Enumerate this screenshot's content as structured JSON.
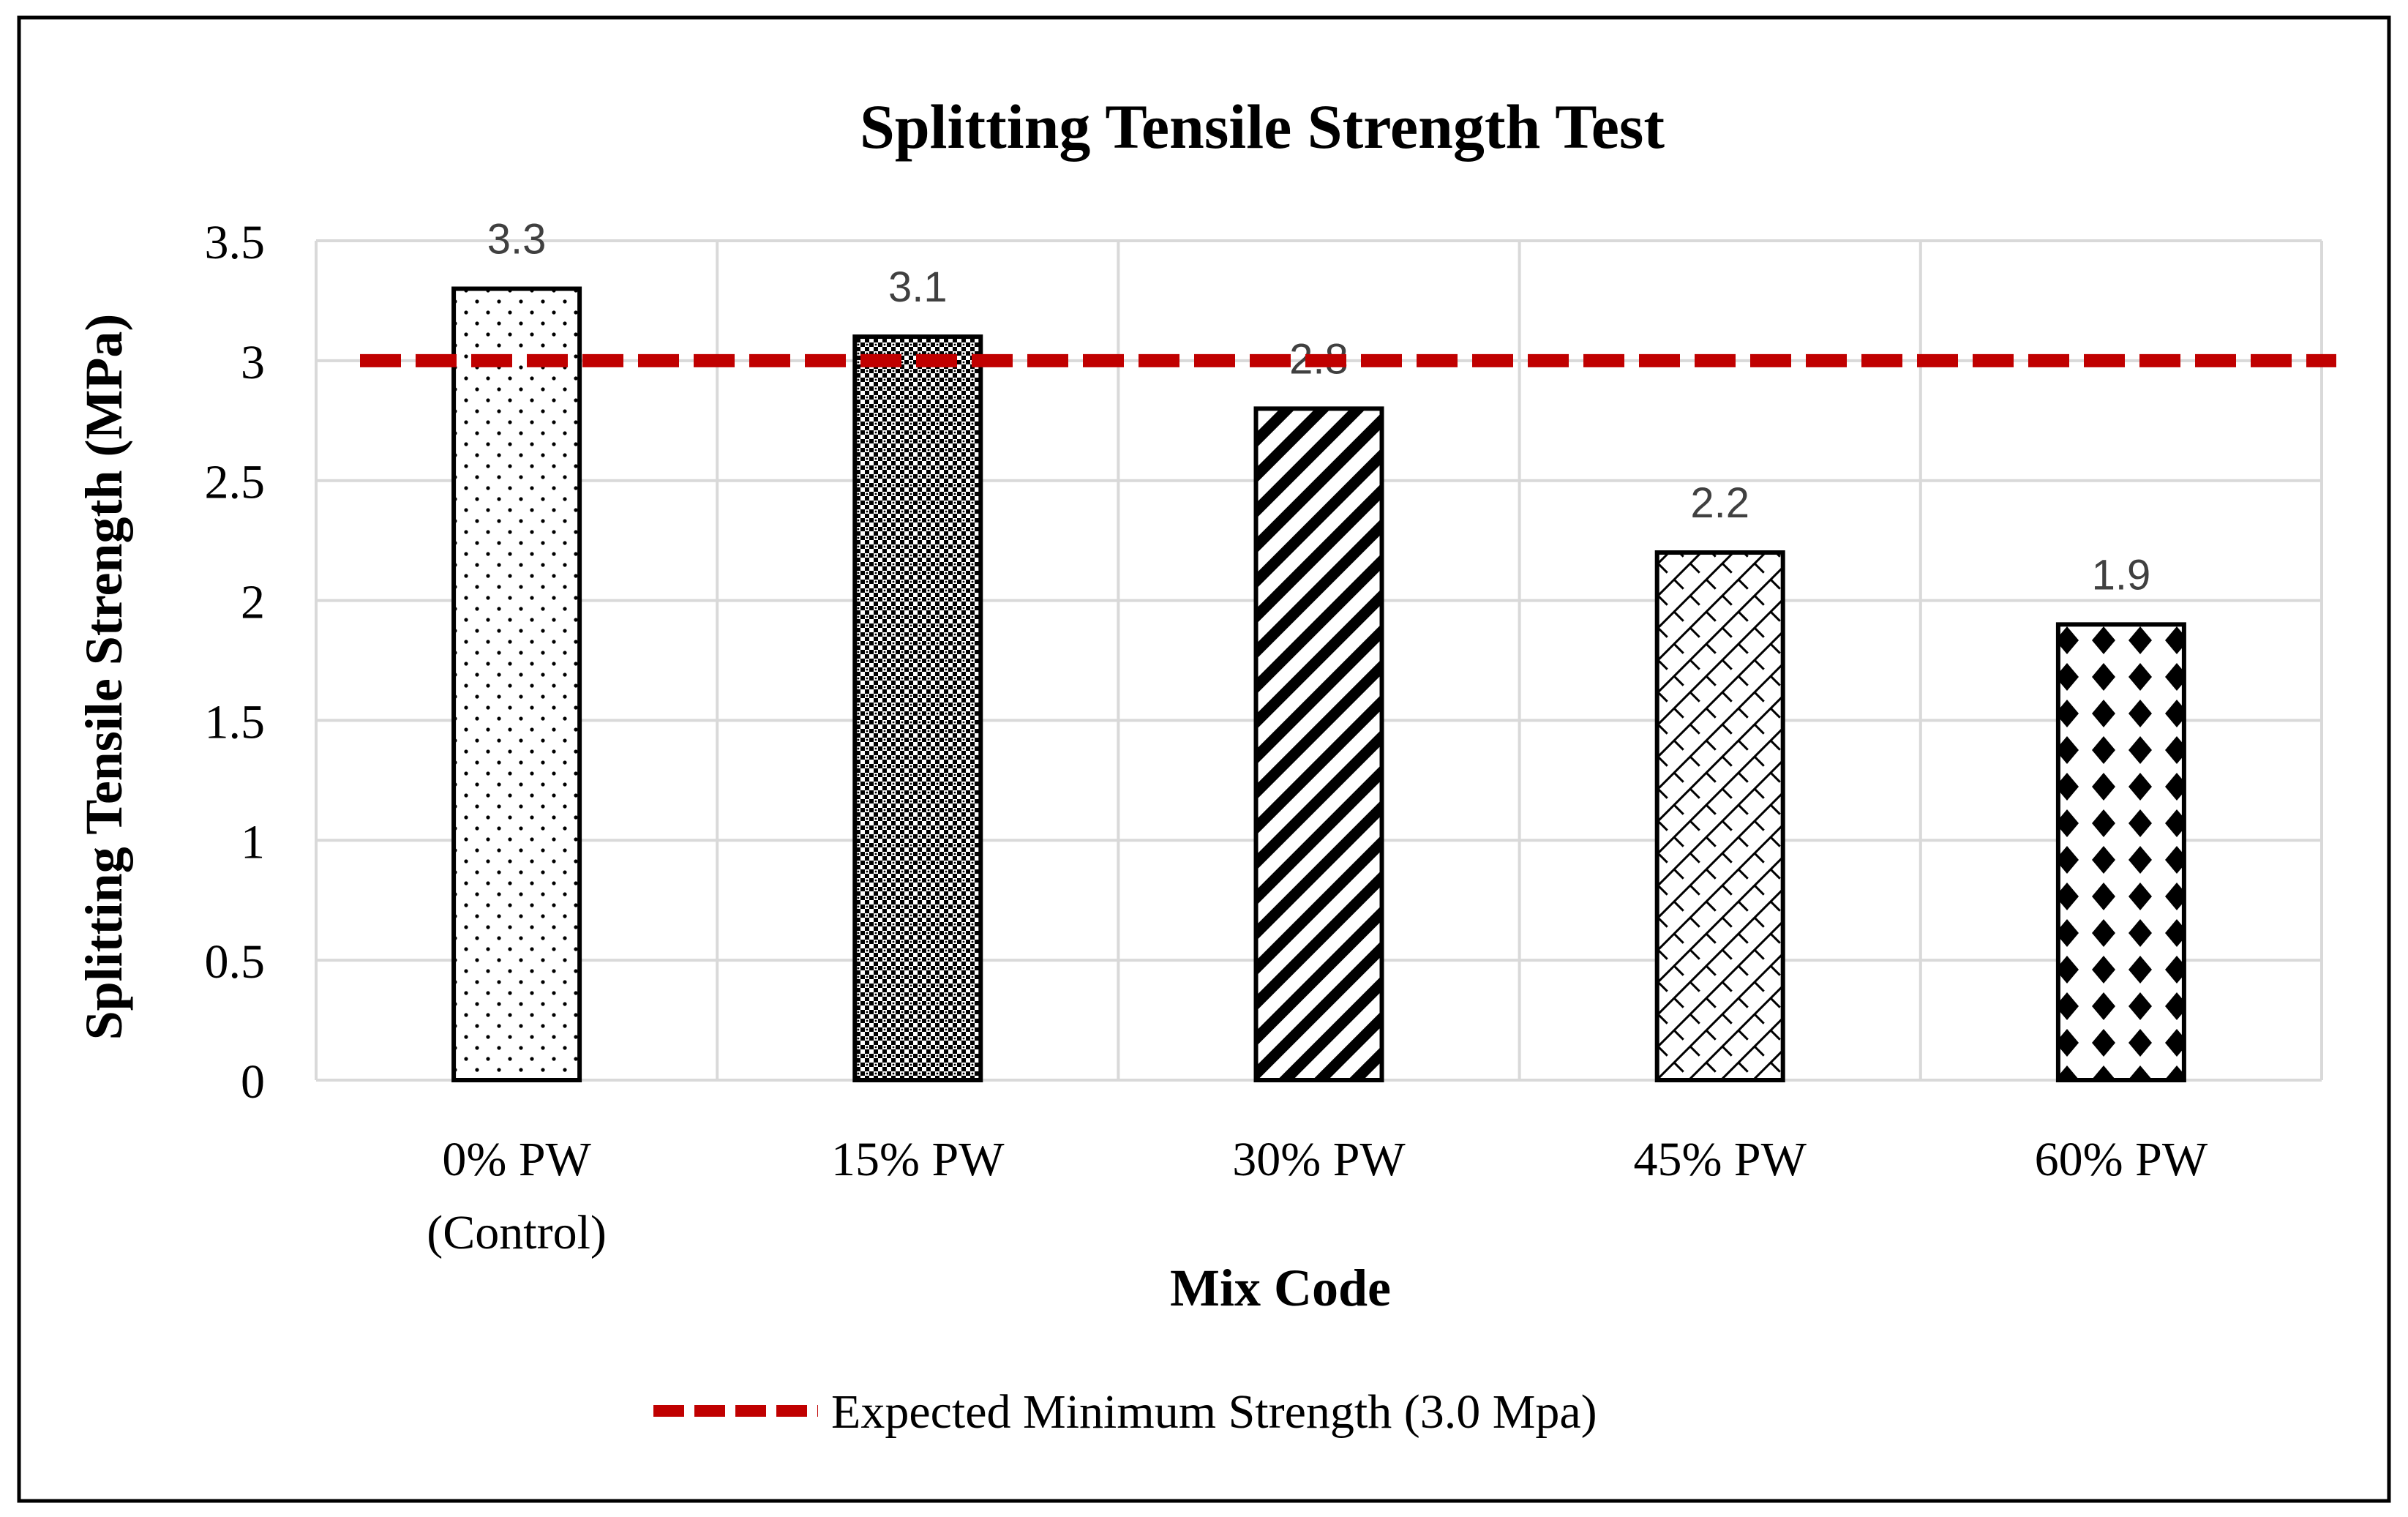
{
  "chart_data": {
    "type": "bar",
    "title": "Splitting Tensile Strength Test",
    "xlabel": "Mix Code",
    "ylabel": "Splitting Tensile Strength (MPa)",
    "categories": [
      [
        "0% PW",
        "(Control)"
      ],
      [
        "15% PW"
      ],
      [
        "30% PW"
      ],
      [
        "45% PW"
      ],
      [
        "60% PW"
      ]
    ],
    "values": [
      3.3,
      3.1,
      2.8,
      2.2,
      1.9
    ],
    "data_labels": [
      "3.3",
      "3.1",
      "2.8",
      "2.2",
      "1.9"
    ],
    "ylim": [
      0,
      3.5
    ],
    "yticks": [
      0,
      0.5,
      1,
      1.5,
      2,
      2.5,
      3,
      3.5
    ],
    "ytick_labels": [
      "0",
      "0.5",
      "1",
      "1.5",
      "2",
      "2.5",
      "3",
      "3.5"
    ],
    "patterns": [
      "dots",
      "fine-check",
      "diagonal-stripes",
      "diagonal-lattice",
      "diamond-dots"
    ],
    "grid": true,
    "reference_line": {
      "value": 3.0,
      "label": "Expected Minimum Strength (3.0 Mpa)",
      "color": "#C00000",
      "style": "dashed"
    },
    "legend_position": "bottom-center"
  },
  "colors": {
    "bar_edge": "#000000",
    "gridline": "#D9D9D9",
    "frame": "#000000",
    "label_text": "#404040",
    "title_text": "#000000"
  }
}
